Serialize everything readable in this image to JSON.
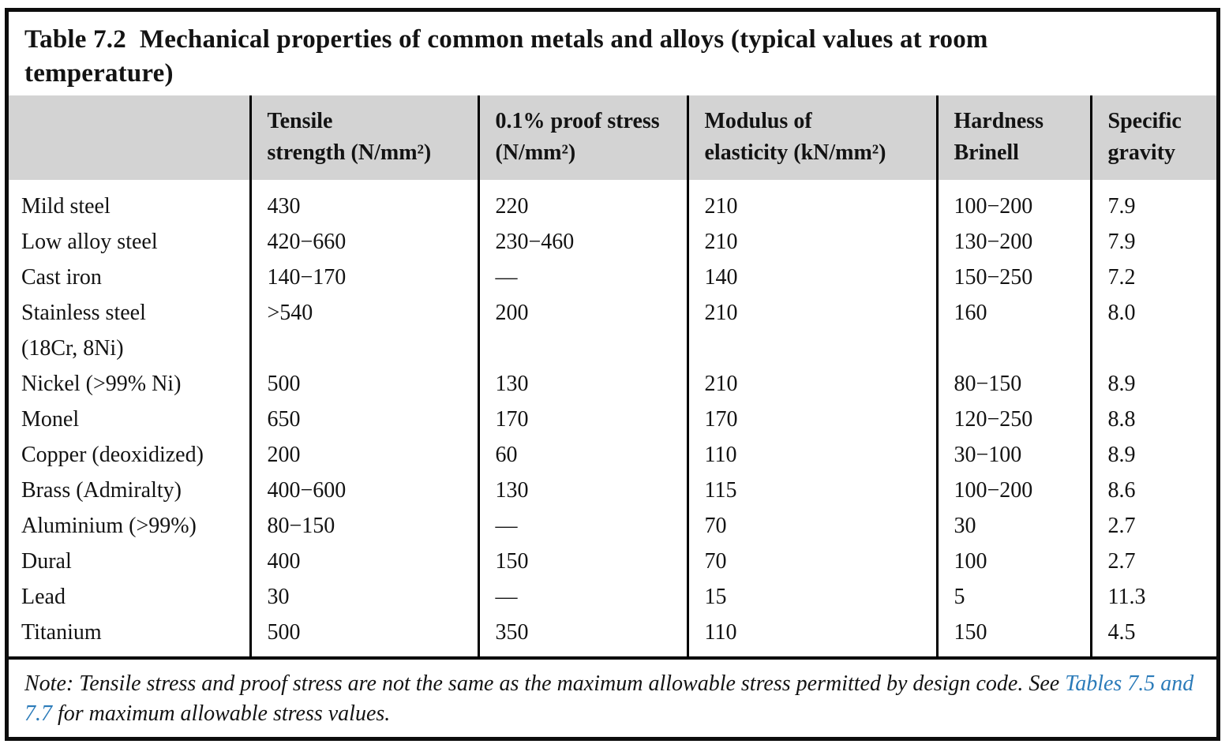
{
  "title": {
    "line1": "Table 7.2  Mechanical properties of common metals and alloys (typical values at room",
    "line2": "temperature)"
  },
  "table": {
    "columns": [
      {
        "lines": [
          "",
          ""
        ]
      },
      {
        "lines": [
          "Tensile",
          "strength (N/mm²)"
        ]
      },
      {
        "lines": [
          "0.1% proof stress",
          "(N/mm²)"
        ]
      },
      {
        "lines": [
          "Modulus of",
          "elasticity (kN/mm²)"
        ]
      },
      {
        "lines": [
          "Hardness",
          "Brinell"
        ]
      },
      {
        "lines": [
          "Specific",
          "gravity"
        ]
      }
    ],
    "rows": [
      {
        "name": [
          "Mild steel"
        ],
        "values": [
          "430",
          "220",
          "210",
          "100−200",
          "7.9"
        ]
      },
      {
        "name": [
          "Low alloy steel"
        ],
        "values": [
          "420−660",
          "230−460",
          "210",
          "130−200",
          "7.9"
        ]
      },
      {
        "name": [
          "Cast iron"
        ],
        "values": [
          "140−170",
          "—",
          "140",
          "150−250",
          "7.2"
        ]
      },
      {
        "name": [
          "Stainless steel",
          "(18Cr, 8Ni)"
        ],
        "values": [
          ">540",
          "200",
          "210",
          "160",
          "8.0"
        ]
      },
      {
        "name": [
          "Nickel (>99% Ni)"
        ],
        "values": [
          "500",
          "130",
          "210",
          "80−150",
          "8.9"
        ]
      },
      {
        "name": [
          "Monel"
        ],
        "values": [
          "650",
          "170",
          "170",
          "120−250",
          "8.8"
        ]
      },
      {
        "name": [
          "Copper (deoxidized)"
        ],
        "values": [
          "200",
          "60",
          "110",
          "30−100",
          "8.9"
        ]
      },
      {
        "name": [
          "Brass (Admiralty)"
        ],
        "values": [
          "400−600",
          "130",
          "115",
          "100−200",
          "8.6"
        ]
      },
      {
        "name": [
          "Aluminium (>99%)"
        ],
        "values": [
          "80−150",
          "—",
          "70",
          "30",
          "2.7"
        ]
      },
      {
        "name": [
          "Dural"
        ],
        "values": [
          "400",
          "150",
          "70",
          "100",
          "2.7"
        ]
      },
      {
        "name": [
          "Lead"
        ],
        "values": [
          "30",
          "—",
          "15",
          "5",
          "11.3"
        ]
      },
      {
        "name": [
          "Titanium"
        ],
        "values": [
          "500",
          "350",
          "110",
          "150",
          "4.5"
        ]
      }
    ]
  },
  "note": {
    "line1_text": "Note: Tensile stress and proof stress are not the same as the maximum allowable stress permitted by design code. See ",
    "line1_link": "Tables 7.5 and",
    "line2_link": "7.7",
    "line2_text": " for maximum allowable stress values."
  },
  "colors": {
    "header_background": "#d3d3d3",
    "link_blue": "#2b7bb9",
    "border_black": "#0d0d0d"
  }
}
